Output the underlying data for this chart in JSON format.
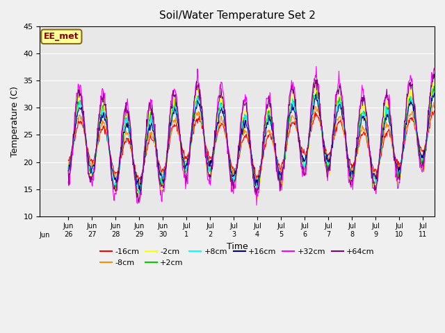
{
  "title": "Soil/Water Temperature Set 2",
  "xlabel": "Time",
  "ylabel": "Temperature (C)",
  "ylim": [
    10,
    45
  ],
  "yticks": [
    10,
    15,
    20,
    25,
    30,
    35,
    40,
    45
  ],
  "annotation_text": "EE_met",
  "bg_color": "#e8e8e8",
  "series": [
    {
      "label": "-16cm",
      "color": "#ff0000"
    },
    {
      "label": "-8cm",
      "color": "#ff8c00"
    },
    {
      "label": "-2cm",
      "color": "#ffff00"
    },
    {
      "label": "+2cm",
      "color": "#00cc00"
    },
    {
      "label": "+8cm",
      "color": "#00ffff"
    },
    {
      "label": "+16cm",
      "color": "#00008b"
    },
    {
      "label": "+32cm",
      "color": "#ff00ff"
    },
    {
      "label": "+64cm",
      "color": "#800080"
    }
  ],
  "x_tick_labels": [
    "Jun\n26",
    "Jun\n27",
    "Jun\n28",
    "Jun\n29",
    "Jun\n30",
    "Jul\n1",
    "Jul\n2",
    "Jul\n3",
    "Jul\n4",
    "Jul\n5",
    "Jul\n6",
    "Jul\n7",
    "Jul\n8",
    "Jul\n9",
    "Jul\n10",
    "Jul\n11"
  ],
  "x_tick_labels_first": "Jun",
  "n_days": 16,
  "pts_per_day": 48
}
